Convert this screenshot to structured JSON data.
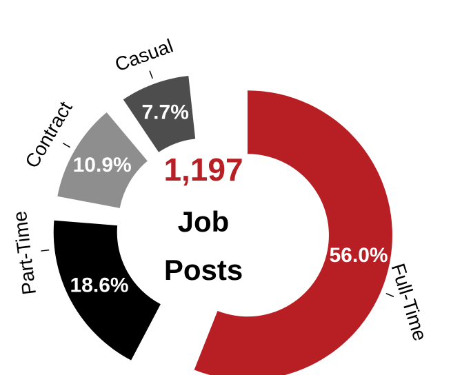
{
  "chart_data": {
    "type": "donut",
    "categories": [
      "Full-Time",
      "Part-Time",
      "Contract",
      "Casual"
    ],
    "values": [
      56.0,
      18.6,
      10.9,
      7.7
    ],
    "value_labels": [
      "56.0%",
      "18.6%",
      "10.9%",
      "7.7%"
    ],
    "colors": [
      "#b81f25",
      "#000000",
      "#8e8e8e",
      "#4d4d4d"
    ],
    "center_value": {
      "value": 1197,
      "label": "1,197"
    },
    "center_value_color": "#b81f25",
    "center_lines": [
      "Job",
      "Posts"
    ]
  }
}
